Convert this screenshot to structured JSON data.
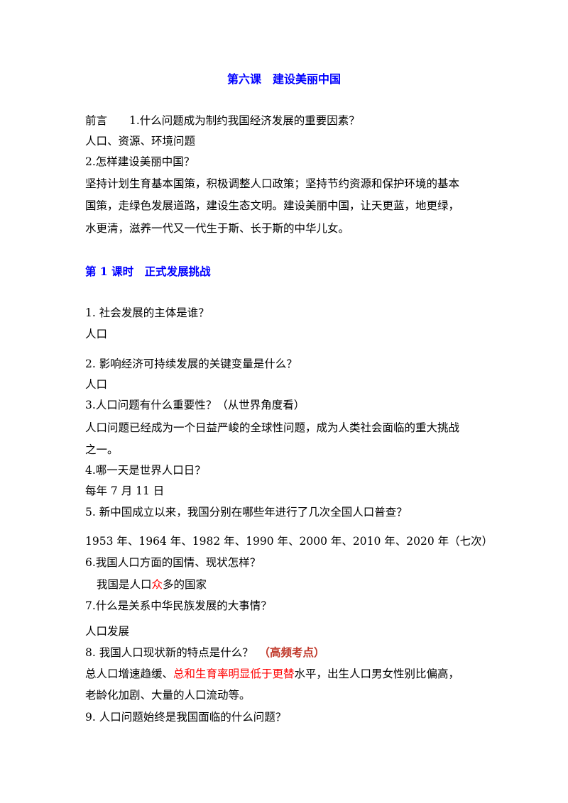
{
  "title": {
    "text": "第六课　建设美丽中国",
    "color": "#0000ff"
  },
  "lines": [
    {
      "segments": [
        {
          "text": "前言　　1.什么问题成为制约我国经济发展的重要因素？"
        }
      ]
    },
    {
      "segments": [
        {
          "text": "人口、资源、环境问题"
        }
      ]
    },
    {
      "segments": [
        {
          "text": "2.怎样建设美丽中国？"
        }
      ]
    },
    {
      "segments": [
        {
          "text": "坚持计划生育基本国策，积极调整人口政策；坚持节约资源和保护环境的基本"
        }
      ]
    },
    {
      "segments": [
        {
          "text": "国策，走绿色发展道路，建设生态文明。建设美丽中国，让天更蓝，地更绿，"
        }
      ]
    },
    {
      "segments": [
        {
          "text": "水更清，滋养一代又一代生于斯、长于斯的中华儿女。"
        }
      ]
    },
    {
      "segments": [
        {
          "text": "第 1 课时　正式发展挑战",
          "color": "#0000ff",
          "bold": true
        }
      ]
    },
    {
      "segments": [
        {
          "text": "1. 社会发展的主体是谁？"
        }
      ]
    },
    {
      "segments": [
        {
          "text": "人口"
        }
      ]
    },
    {
      "segments": [
        {
          "text": "2. 影响经济可持续发展的关键变量是什么？"
        }
      ]
    },
    {
      "segments": [
        {
          "text": "人口"
        }
      ]
    },
    {
      "segments": [
        {
          "text": "3.人口问题有什么重要性？（从世界角度看）"
        }
      ]
    },
    {
      "segments": [
        {
          "text": "人口问题已经成为一个日益严峻的全球性问题，成为人类社会面临的重大挑战"
        }
      ]
    },
    {
      "segments": [
        {
          "text": "之一。"
        }
      ]
    },
    {
      "segments": [
        {
          "text": "4.哪一天是世界人口日？"
        }
      ]
    },
    {
      "segments": [
        {
          "text": "每年 7 月 11 日"
        }
      ]
    },
    {
      "segments": [
        {
          "text": "5. 新中国成立以来，我国分别在哪些年进行了几次全国人口普查？"
        }
      ]
    },
    {
      "segments": [
        {
          "text": "1953 年、1964 年、1982 年、1990 年、2000 年、2010 年、2020 年（七次）"
        }
      ]
    },
    {
      "segments": [
        {
          "text": "6.我国人口方面的国情、现状怎样？"
        }
      ]
    },
    {
      "segments": [
        {
          "text": "我国是人口"
        },
        {
          "text": "众",
          "color": "#ff0000"
        },
        {
          "text": "多的国家"
        }
      ]
    },
    {
      "segments": [
        {
          "text": "7.什么是关系中华民族发展的大事情？"
        }
      ]
    },
    {
      "segments": [
        {
          "text": "人口发展"
        }
      ]
    },
    {
      "segments": [
        {
          "text": "8.  我国人口现状新的特点是什么？　"
        },
        {
          "text": "（高频考点）",
          "color": "#c0392b",
          "bold": true
        }
      ]
    },
    {
      "segments": [
        {
          "text": "总人口增速趋缓、"
        },
        {
          "text": "总和生育率明显低于更替",
          "color": "#ff0000"
        },
        {
          "text": "水平，出生人口男女性别比偏高，"
        }
      ]
    },
    {
      "segments": [
        {
          "text": "老龄化加剧、大量的人口流动等。"
        }
      ]
    },
    {
      "segments": [
        {
          "text": "9.  人口问题始终是我国面临的什么问题？"
        }
      ]
    }
  ]
}
